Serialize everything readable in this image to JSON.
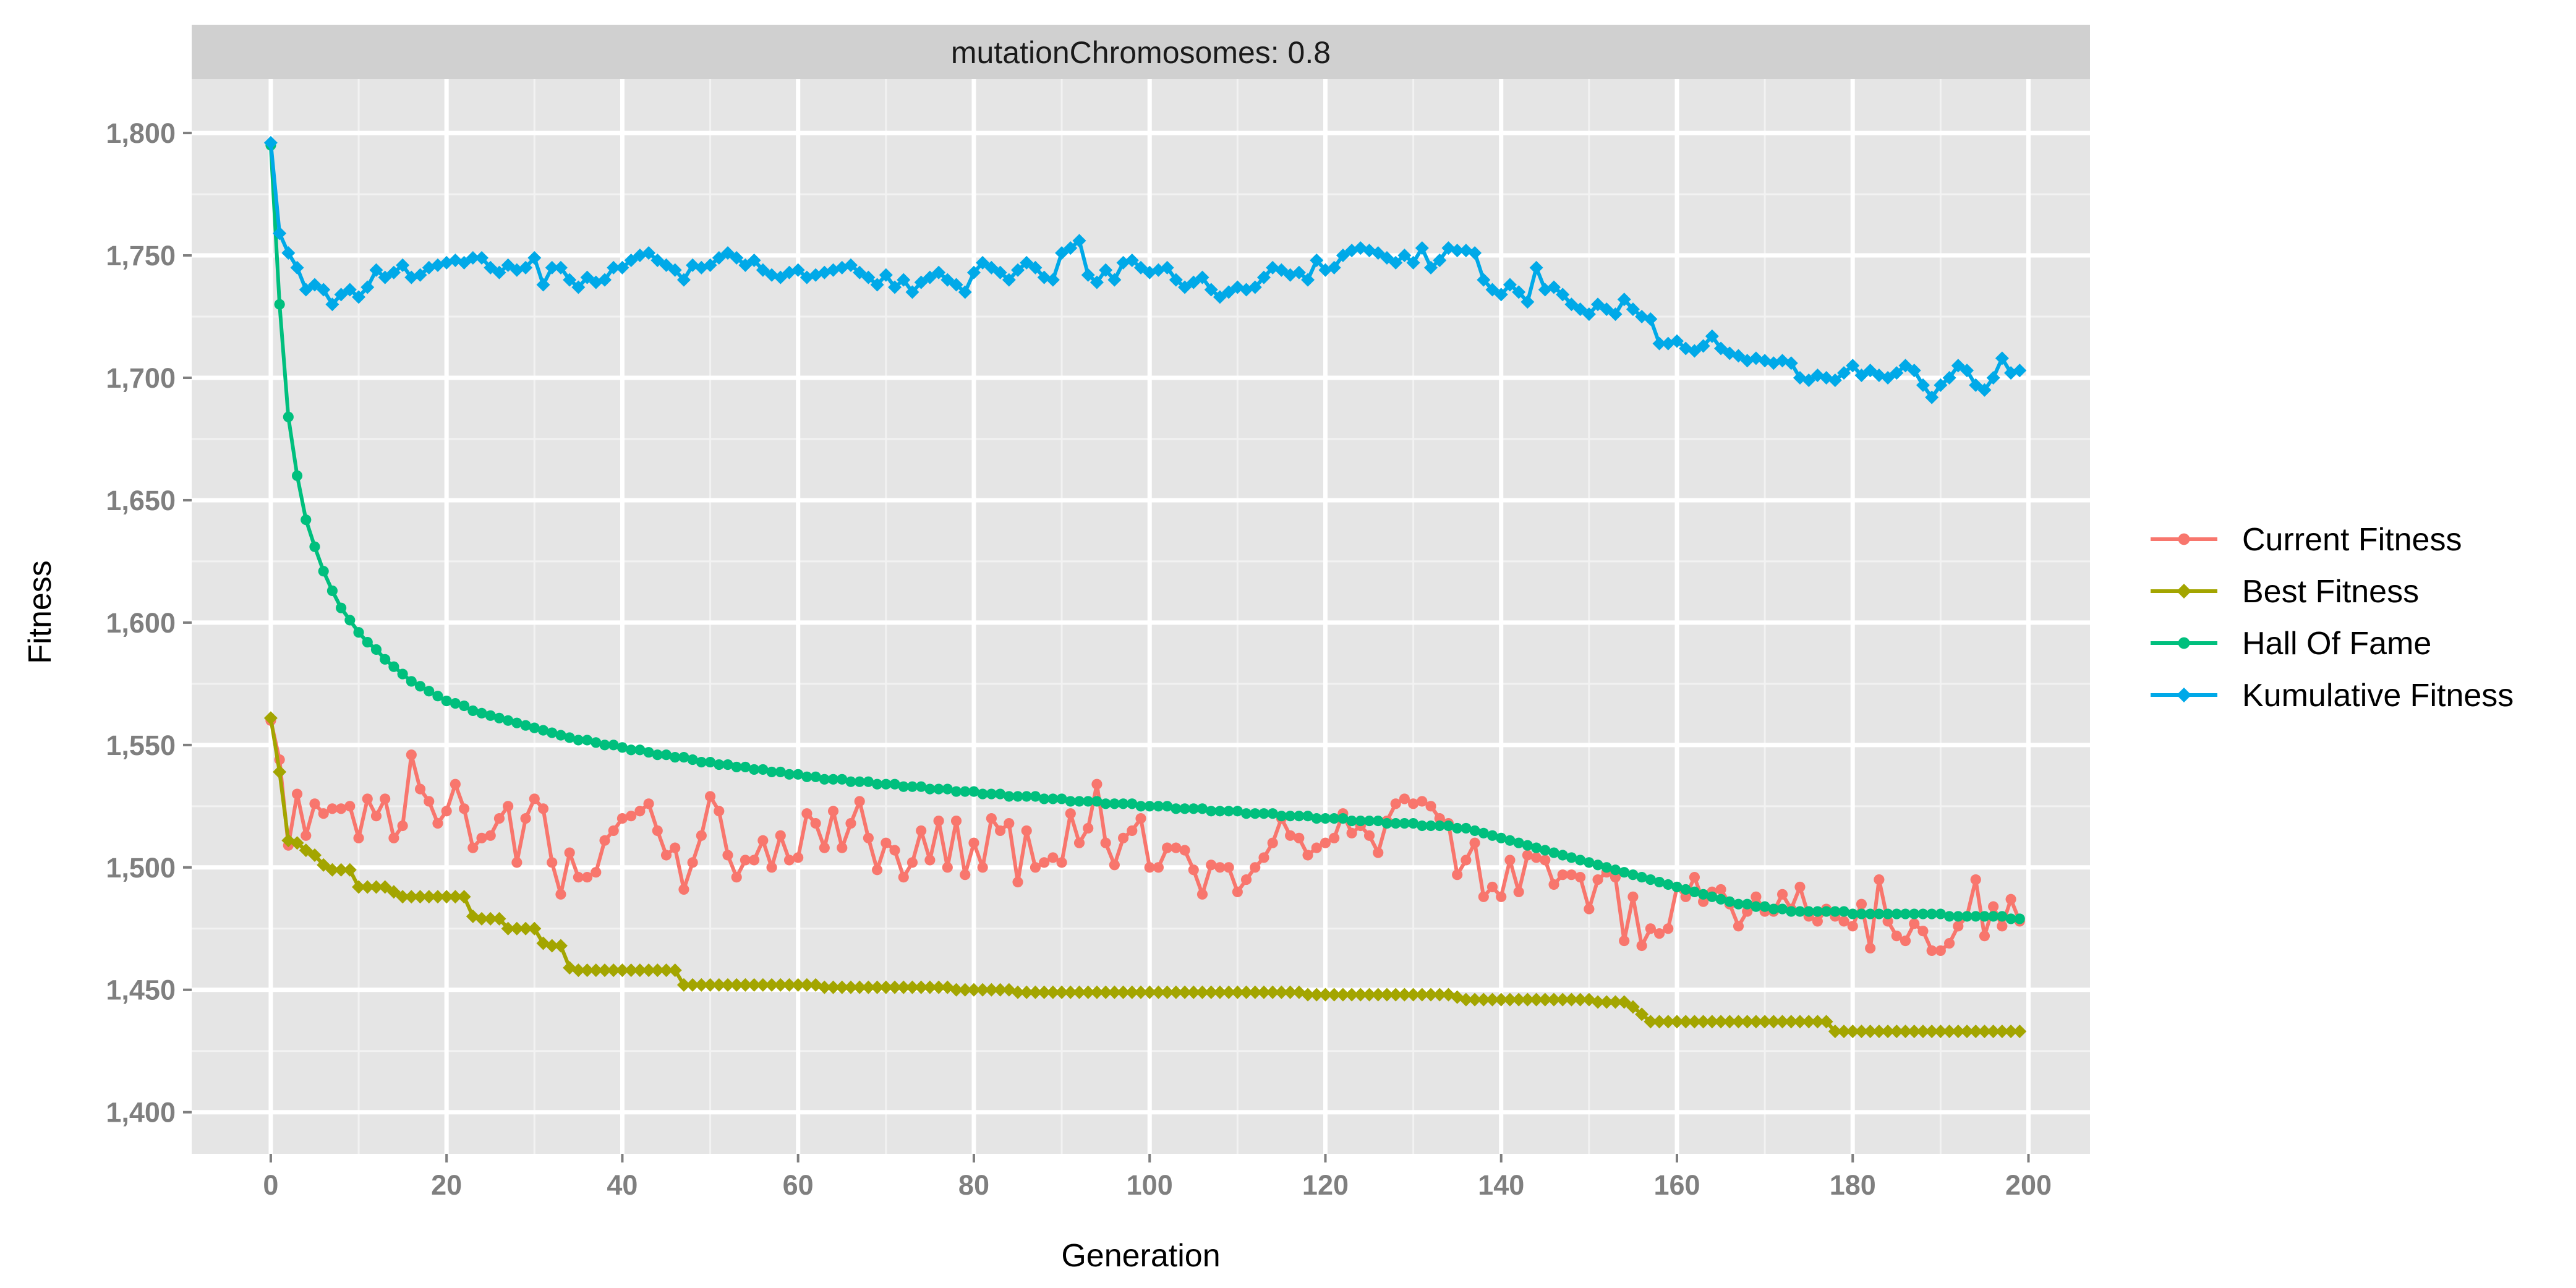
{
  "chart_data": {
    "type": "line",
    "facet_label": "mutationChromosomes: 0.8",
    "xlabel": "Generation",
    "ylabel": "Fitness",
    "xlim": [
      -9,
      207
    ],
    "ylim": [
      1383,
      1822
    ],
    "x_ticks": [
      0,
      20,
      40,
      60,
      80,
      100,
      120,
      140,
      160,
      180,
      200
    ],
    "x_tick_labels": [
      "0",
      "20",
      "40",
      "60",
      "80",
      "100",
      "120",
      "140",
      "160",
      "180",
      "200"
    ],
    "y_ticks": [
      1400,
      1450,
      1500,
      1550,
      1600,
      1650,
      1700,
      1750,
      1800
    ],
    "y_tick_labels": [
      "1,400",
      "1,450",
      "1,500",
      "1,550",
      "1,600",
      "1,650",
      "1,700",
      "1,750",
      "1,800"
    ],
    "grid": true,
    "legend_position": "right",
    "x": [
      0,
      1,
      2,
      3,
      4,
      5,
      6,
      7,
      8,
      9,
      10,
      11,
      12,
      13,
      14,
      15,
      16,
      17,
      18,
      19,
      20,
      21,
      22,
      23,
      24,
      25,
      26,
      27,
      28,
      29,
      30,
      31,
      32,
      33,
      34,
      35,
      36,
      37,
      38,
      39,
      40,
      41,
      42,
      43,
      44,
      45,
      46,
      47,
      48,
      49,
      50,
      51,
      52,
      53,
      54,
      55,
      56,
      57,
      58,
      59,
      60,
      61,
      62,
      63,
      64,
      65,
      66,
      67,
      68,
      69,
      70,
      71,
      72,
      73,
      74,
      75,
      76,
      77,
      78,
      79,
      80,
      81,
      82,
      83,
      84,
      85,
      86,
      87,
      88,
      89,
      90,
      91,
      92,
      93,
      94,
      95,
      96,
      97,
      98,
      99,
      100,
      101,
      102,
      103,
      104,
      105,
      106,
      107,
      108,
      109,
      110,
      111,
      112,
      113,
      114,
      115,
      116,
      117,
      118,
      119,
      120,
      121,
      122,
      123,
      124,
      125,
      126,
      127,
      128,
      129,
      130,
      131,
      132,
      133,
      134,
      135,
      136,
      137,
      138,
      139,
      140,
      141,
      142,
      143,
      144,
      145,
      146,
      147,
      148,
      149,
      150,
      151,
      152,
      153,
      154,
      155,
      156,
      157,
      158,
      159,
      160,
      161,
      162,
      163,
      164,
      165,
      166,
      167,
      168,
      169,
      170,
      171,
      172,
      173,
      174,
      175,
      176,
      177,
      178,
      179,
      180,
      181,
      182,
      183,
      184,
      185,
      186,
      187,
      188,
      189,
      190,
      191,
      192,
      193,
      194,
      195,
      196,
      197,
      198,
      199
    ],
    "series": [
      {
        "name": "Current Fitness",
        "color": "#F8766D",
        "marker": "circle",
        "values": [
          1560,
          1544,
          1509,
          1530,
          1513,
          1526,
          1522,
          1524,
          1524,
          1525,
          1512,
          1528,
          1521,
          1528,
          1512,
          1517,
          1546,
          1532,
          1527,
          1518,
          1523,
          1534,
          1524,
          1508,
          1512,
          1513,
          1520,
          1525,
          1502,
          1520,
          1528,
          1524,
          1502,
          1489,
          1506,
          1496,
          1496,
          1498,
          1511,
          1515,
          1520,
          1521,
          1523,
          1526,
          1515,
          1505,
          1508,
          1491,
          1502,
          1513,
          1529,
          1523,
          1505,
          1496,
          1503,
          1503,
          1511,
          1500,
          1513,
          1503,
          1504,
          1522,
          1518,
          1508,
          1523,
          1508,
          1518,
          1527,
          1512,
          1499,
          1510,
          1507,
          1496,
          1502,
          1515,
          1503,
          1519,
          1500,
          1519,
          1497,
          1510,
          1500,
          1520,
          1515,
          1518,
          1494,
          1515,
          1500,
          1502,
          1504,
          1502,
          1522,
          1510,
          1516,
          1534,
          1510,
          1501,
          1512,
          1515,
          1520,
          1500,
          1500,
          1508,
          1508,
          1507,
          1499,
          1489,
          1501,
          1500,
          1500,
          1490,
          1495,
          1500,
          1504,
          1510,
          1520,
          1513,
          1512,
          1505,
          1508,
          1510,
          1512,
          1522,
          1514,
          1517,
          1513,
          1506,
          1519,
          1526,
          1528,
          1526,
          1527,
          1525,
          1520,
          1518,
          1497,
          1503,
          1510,
          1488,
          1492,
          1488,
          1503,
          1490,
          1505,
          1504,
          1503,
          1493,
          1497,
          1497,
          1496,
          1483,
          1495,
          1498,
          1496,
          1470,
          1488,
          1468,
          1475,
          1473,
          1475,
          1492,
          1488,
          1496,
          1486,
          1490,
          1491,
          1485,
          1476,
          1482,
          1488,
          1482,
          1482,
          1489,
          1483,
          1492,
          1480,
          1478,
          1483,
          1480,
          1478,
          1476,
          1485,
          1467,
          1495,
          1478,
          1472,
          1470,
          1477,
          1474,
          1466,
          1466,
          1469,
          1476,
          1480,
          1495,
          1472,
          1484,
          1476,
          1487,
          1478
        ]
      },
      {
        "name": "Best Fitness",
        "color": "#A3A500",
        "marker": "diamond",
        "values": [
          1561,
          1539,
          1511,
          1510,
          1507,
          1505,
          1501,
          1499,
          1499,
          1499,
          1492,
          1492,
          1492,
          1492,
          1490,
          1488,
          1488,
          1488,
          1488,
          1488,
          1488,
          1488,
          1488,
          1480,
          1479,
          1479,
          1479,
          1475,
          1475,
          1475,
          1475,
          1469,
          1468,
          1468,
          1459,
          1458,
          1458,
          1458,
          1458,
          1458,
          1458,
          1458,
          1458,
          1458,
          1458,
          1458,
          1458,
          1452,
          1452,
          1452,
          1452,
          1452,
          1452,
          1452,
          1452,
          1452,
          1452,
          1452,
          1452,
          1452,
          1452,
          1452,
          1452,
          1451,
          1451,
          1451,
          1451,
          1451,
          1451,
          1451,
          1451,
          1451,
          1451,
          1451,
          1451,
          1451,
          1451,
          1451,
          1450,
          1450,
          1450,
          1450,
          1450,
          1450,
          1450,
          1449,
          1449,
          1449,
          1449,
          1449,
          1449,
          1449,
          1449,
          1449,
          1449,
          1449,
          1449,
          1449,
          1449,
          1449,
          1449,
          1449,
          1449,
          1449,
          1449,
          1449,
          1449,
          1449,
          1449,
          1449,
          1449,
          1449,
          1449,
          1449,
          1449,
          1449,
          1449,
          1449,
          1448,
          1448,
          1448,
          1448,
          1448,
          1448,
          1448,
          1448,
          1448,
          1448,
          1448,
          1448,
          1448,
          1448,
          1448,
          1448,
          1448,
          1447,
          1446,
          1446,
          1446,
          1446,
          1446,
          1446,
          1446,
          1446,
          1446,
          1446,
          1446,
          1446,
          1446,
          1446,
          1446,
          1445,
          1445,
          1445,
          1445,
          1443,
          1440,
          1437,
          1437,
          1437,
          1437,
          1437,
          1437,
          1437,
          1437,
          1437,
          1437,
          1437,
          1437,
          1437,
          1437,
          1437,
          1437,
          1437,
          1437,
          1437,
          1437,
          1437,
          1433,
          1433,
          1433,
          1433,
          1433,
          1433,
          1433,
          1433,
          1433,
          1433,
          1433,
          1433,
          1433,
          1433,
          1433,
          1433,
          1433,
          1433,
          1433,
          1433,
          1433,
          1433
        ]
      },
      {
        "name": "Hall Of Fame",
        "color": "#00BF7D",
        "marker": "circle",
        "values": [
          1795,
          1730,
          1684,
          1660,
          1642,
          1631,
          1621,
          1613,
          1606,
          1601,
          1596,
          1592,
          1589,
          1585,
          1582,
          1579,
          1576,
          1574,
          1572,
          1570,
          1568,
          1567,
          1566,
          1564,
          1563,
          1562,
          1561,
          1560,
          1559,
          1558,
          1557,
          1556,
          1555,
          1554,
          1553,
          1552,
          1552,
          1551,
          1550,
          1550,
          1549,
          1548,
          1548,
          1547,
          1546,
          1546,
          1545,
          1545,
          1544,
          1543,
          1543,
          1542,
          1542,
          1541,
          1541,
          1540,
          1540,
          1539,
          1539,
          1538,
          1538,
          1537,
          1537,
          1536,
          1536,
          1536,
          1535,
          1535,
          1535,
          1534,
          1534,
          1534,
          1533,
          1533,
          1533,
          1532,
          1532,
          1532,
          1531,
          1531,
          1531,
          1530,
          1530,
          1530,
          1529,
          1529,
          1529,
          1529,
          1528,
          1528,
          1528,
          1527,
          1527,
          1527,
          1527,
          1526,
          1526,
          1526,
          1526,
          1525,
          1525,
          1525,
          1525,
          1524,
          1524,
          1524,
          1524,
          1523,
          1523,
          1523,
          1523,
          1522,
          1522,
          1522,
          1522,
          1521,
          1521,
          1521,
          1521,
          1520,
          1520,
          1520,
          1520,
          1519,
          1519,
          1519,
          1519,
          1518,
          1518,
          1518,
          1518,
          1517,
          1517,
          1517,
          1517,
          1516,
          1516,
          1515,
          1514,
          1513,
          1512,
          1511,
          1510,
          1509,
          1508,
          1507,
          1506,
          1505,
          1504,
          1503,
          1502,
          1501,
          1500,
          1499,
          1498,
          1497,
          1496,
          1495,
          1494,
          1493,
          1492,
          1491,
          1490,
          1489,
          1488,
          1487,
          1486,
          1485,
          1485,
          1484,
          1484,
          1483,
          1483,
          1482,
          1482,
          1482,
          1482,
          1482,
          1482,
          1482,
          1481,
          1481,
          1481,
          1481,
          1481,
          1481,
          1481,
          1481,
          1481,
          1481,
          1481,
          1480,
          1480,
          1480,
          1480,
          1480,
          1480,
          1480,
          1479,
          1479
        ]
      },
      {
        "name": "Kumulative Fitness",
        "color": "#00A9E8",
        "marker": "diamond",
        "values": [
          1796,
          1759,
          1751,
          1745,
          1736,
          1738,
          1736,
          1730,
          1734,
          1736,
          1733,
          1737,
          1744,
          1741,
          1743,
          1746,
          1741,
          1742,
          1745,
          1746,
          1747,
          1748,
          1747,
          1749,
          1749,
          1745,
          1743,
          1746,
          1744,
          1745,
          1749,
          1738,
          1745,
          1745,
          1740,
          1737,
          1741,
          1739,
          1740,
          1745,
          1745,
          1748,
          1750,
          1751,
          1748,
          1746,
          1744,
          1740,
          1746,
          1745,
          1746,
          1749,
          1751,
          1749,
          1746,
          1748,
          1744,
          1742,
          1741,
          1743,
          1744,
          1741,
          1742,
          1743,
          1744,
          1745,
          1746,
          1743,
          1741,
          1738,
          1742,
          1737,
          1740,
          1735,
          1739,
          1741,
          1743,
          1740,
          1738,
          1735,
          1743,
          1747,
          1745,
          1743,
          1740,
          1744,
          1747,
          1745,
          1741,
          1740,
          1751,
          1753,
          1756,
          1742,
          1739,
          1744,
          1740,
          1747,
          1748,
          1745,
          1743,
          1744,
          1745,
          1740,
          1737,
          1739,
          1741,
          1736,
          1733,
          1735,
          1737,
          1736,
          1737,
          1741,
          1745,
          1744,
          1742,
          1743,
          1740,
          1748,
          1744,
          1745,
          1750,
          1752,
          1753,
          1752,
          1751,
          1749,
          1747,
          1750,
          1747,
          1753,
          1745,
          1748,
          1753,
          1752,
          1752,
          1751,
          1740,
          1736,
          1734,
          1738,
          1735,
          1731,
          1745,
          1736,
          1737,
          1734,
          1730,
          1728,
          1726,
          1730,
          1728,
          1726,
          1732,
          1728,
          1725,
          1724,
          1714,
          1714,
          1715,
          1712,
          1711,
          1713,
          1717,
          1712,
          1710,
          1709,
          1707,
          1708,
          1707,
          1706,
          1707,
          1706,
          1700,
          1699,
          1701,
          1700,
          1699,
          1702,
          1705,
          1701,
          1703,
          1701,
          1700,
          1702,
          1705,
          1703,
          1697,
          1692,
          1697,
          1700,
          1705,
          1703,
          1697,
          1695,
          1700,
          1708,
          1702,
          1703
        ]
      }
    ]
  }
}
